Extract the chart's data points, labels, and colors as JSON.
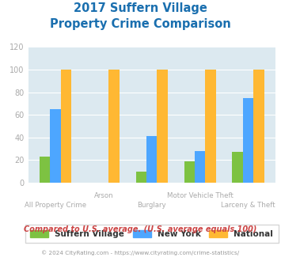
{
  "title_line1": "2017 Suffern Village",
  "title_line2": "Property Crime Comparison",
  "categories": [
    "All Property Crime",
    "Arson",
    "Burglary",
    "Motor Vehicle Theft",
    "Larceny & Theft"
  ],
  "suffern_village": [
    23,
    0,
    10,
    19,
    27
  ],
  "new_york": [
    65,
    0,
    41,
    28,
    75
  ],
  "national": [
    100,
    100,
    100,
    100,
    100
  ],
  "color_suffern": "#7dc242",
  "color_newyork": "#4da6ff",
  "color_national": "#ffb833",
  "ylim": [
    0,
    120
  ],
  "yticks": [
    0,
    20,
    40,
    60,
    80,
    100,
    120
  ],
  "legend_labels": [
    "Suffern Village",
    "New York",
    "National"
  ],
  "footnote1": "Compared to U.S. average. (U.S. average equals 100)",
  "footnote2": "© 2024 CityRating.com - https://www.cityrating.com/crime-statistics/",
  "title_color": "#1a6faf",
  "footnote1_color": "#cc4444",
  "footnote2_color": "#999999",
  "axis_label_color": "#aaaaaa",
  "background_color": "#dce9f0",
  "bar_width": 0.22
}
